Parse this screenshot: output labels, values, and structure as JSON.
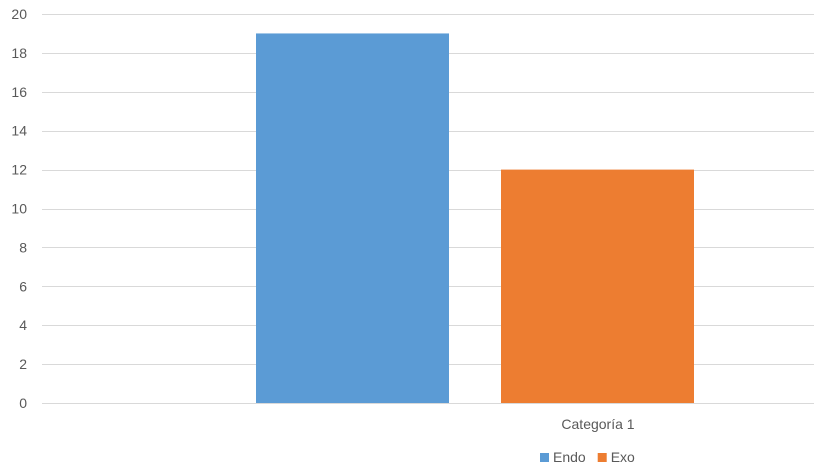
{
  "chart_data": {
    "type": "bar",
    "categories": [
      "Categoría 1"
    ],
    "series": [
      {
        "name": "Endo",
        "values": [
          19
        ],
        "color": "#5b9bd5"
      },
      {
        "name": "Exo",
        "values": [
          12
        ],
        "color": "#ed7d31"
      }
    ],
    "ylim": [
      0,
      20
    ],
    "yticks": [
      0,
      2,
      4,
      6,
      8,
      10,
      12,
      14,
      16,
      18,
      20
    ],
    "grid": true,
    "legend_position": "bottom-right",
    "title": "",
    "xlabel": "",
    "ylabel": ""
  }
}
